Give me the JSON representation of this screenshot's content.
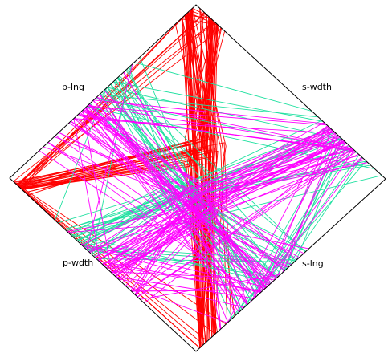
{
  "chart_data": {
    "type": "line",
    "title": "",
    "axes": [
      "s-wdth",
      "s-lng",
      "p-wdth",
      "p-lng"
    ],
    "grid": false,
    "series": [
      {
        "name": "",
        "color": "#ff0000"
      },
      {
        "name": "",
        "color": "#20e0a0"
      },
      {
        "name": "",
        "color": "#ff00ff"
      }
    ],
    "colors": {
      "frame": "#000000",
      "background": "#ffffff"
    }
  }
}
